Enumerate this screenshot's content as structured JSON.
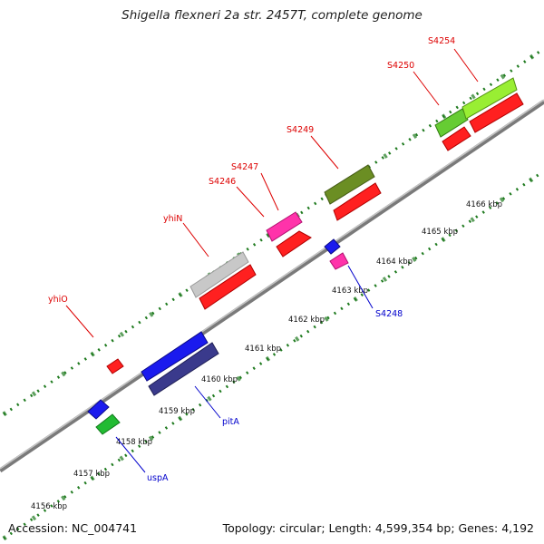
{
  "title": "Shigella flexneri 2a str. 2457T, complete genome",
  "footer": {
    "accession_label": "Accession:",
    "accession": "NC_004741",
    "topology_label": "Topology:",
    "topology": "circular",
    "length_label": "Length:",
    "length": "4,599,354 bp",
    "genes_label": "Genes:",
    "genes": "4,192"
  },
  "colors": {
    "backbone": "#8c8c8c",
    "ticks": "#1e7a1e",
    "label_red": "#dd0000",
    "label_blue": "#0000cc"
  },
  "scale_ticks": [
    "4156 kbp",
    "4157 kbp",
    "4158 kbp",
    "4159 kbp",
    "4160 kbp",
    "4161 kbp",
    "4162 kbp",
    "4163 kbp",
    "4164 kbp",
    "4165 kbp",
    "4166 kbp"
  ],
  "features_top": [
    {
      "id": "yhiO",
      "label": "yhiO",
      "color": "#ff2020",
      "strand": "reverse-outer"
    },
    {
      "id": "yhiN",
      "label": "yhiN",
      "color": "#c8c8c8",
      "strand": "forward-outer"
    },
    {
      "id": "S4246",
      "label": "S4246",
      "color": "#ff33aa",
      "strand": "forward-outer"
    },
    {
      "id": "S4247",
      "label": "S4247",
      "color": "#ff2020",
      "strand": "reverse-outer"
    },
    {
      "id": "S4249",
      "label": "S4249",
      "color": "#6b8e23",
      "strand": "forward-outer"
    },
    {
      "id": "S4250",
      "label": "S4250",
      "color": "#66cc33",
      "strand": "forward-outer"
    },
    {
      "id": "S4254",
      "label": "S4254",
      "color": "#99ee33",
      "strand": "forward-outer"
    }
  ],
  "features_bottom": [
    {
      "id": "uspA",
      "label": "uspA",
      "color": "#22bb33"
    },
    {
      "id": "pitA",
      "label": "pitA",
      "color": "#1a1acc"
    },
    {
      "id": "S4248",
      "label": "S4248",
      "color": "#ff33aa"
    }
  ]
}
